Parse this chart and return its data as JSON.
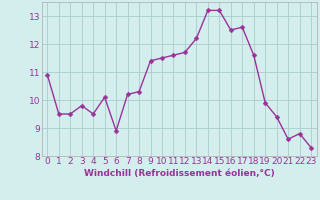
{
  "x": [
    0,
    1,
    2,
    3,
    4,
    5,
    6,
    7,
    8,
    9,
    10,
    11,
    12,
    13,
    14,
    15,
    16,
    17,
    18,
    19,
    20,
    21,
    22,
    23
  ],
  "y": [
    10.9,
    9.5,
    9.5,
    9.8,
    9.5,
    10.1,
    8.9,
    10.2,
    10.3,
    11.4,
    11.5,
    11.6,
    11.7,
    12.2,
    13.2,
    13.2,
    12.5,
    12.6,
    11.6,
    9.9,
    9.4,
    8.6,
    8.8,
    8.3
  ],
  "line_color": "#993399",
  "marker_color": "#993399",
  "bg_color": "#d4eeee",
  "grid_color": "#aacccc",
  "xlabel": "Windchill (Refroidissement éolien,°C)",
  "xlim": [
    -0.5,
    23.5
  ],
  "ylim": [
    8.0,
    13.5
  ],
  "yticks": [
    8,
    9,
    10,
    11,
    12,
    13
  ],
  "xticks": [
    0,
    1,
    2,
    3,
    4,
    5,
    6,
    7,
    8,
    9,
    10,
    11,
    12,
    13,
    14,
    15,
    16,
    17,
    18,
    19,
    20,
    21,
    22,
    23
  ],
  "xlabel_fontsize": 6.5,
  "tick_fontsize": 6.5,
  "line_width": 1.0,
  "marker_size": 2.5
}
